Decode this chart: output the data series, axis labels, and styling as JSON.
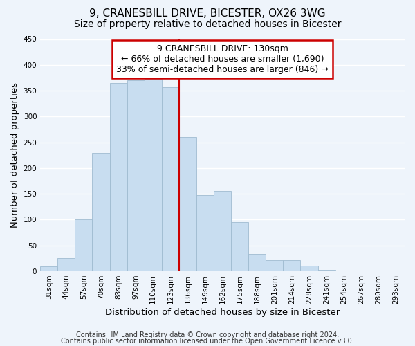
{
  "title": "9, CRANESBILL DRIVE, BICESTER, OX26 3WG",
  "subtitle": "Size of property relative to detached houses in Bicester",
  "xlabel": "Distribution of detached houses by size in Bicester",
  "ylabel": "Number of detached properties",
  "categories": [
    "31sqm",
    "44sqm",
    "57sqm",
    "70sqm",
    "83sqm",
    "97sqm",
    "110sqm",
    "123sqm",
    "136sqm",
    "149sqm",
    "162sqm",
    "175sqm",
    "188sqm",
    "201sqm",
    "214sqm",
    "228sqm",
    "241sqm",
    "254sqm",
    "267sqm",
    "280sqm",
    "293sqm"
  ],
  "values": [
    10,
    25,
    100,
    230,
    365,
    370,
    373,
    357,
    260,
    147,
    155,
    95,
    33,
    21,
    21,
    11,
    3,
    1,
    1,
    1,
    1
  ],
  "bar_color": "#c8ddf0",
  "bar_edge_color": "#a0bbd0",
  "vline_color": "#cc0000",
  "annotation_line1": "9 CRANESBILL DRIVE: 130sqm",
  "annotation_line2": "← 66% of detached houses are smaller (1,690)",
  "annotation_line3": "33% of semi-detached houses are larger (846) →",
  "annotation_box_color": "#ffffff",
  "annotation_box_edge": "#cc0000",
  "ylim": [
    0,
    450
  ],
  "yticks": [
    0,
    50,
    100,
    150,
    200,
    250,
    300,
    350,
    400,
    450
  ],
  "footer_line1": "Contains HM Land Registry data © Crown copyright and database right 2024.",
  "footer_line2": "Contains public sector information licensed under the Open Government Licence v3.0.",
  "bg_color": "#eef4fb",
  "plot_bg_color": "#eef4fb",
  "title_fontsize": 11,
  "subtitle_fontsize": 10,
  "axis_label_fontsize": 9.5,
  "tick_fontsize": 7.5,
  "footer_fontsize": 7,
  "annotation_fontsize": 9,
  "vline_index": 7.5
}
